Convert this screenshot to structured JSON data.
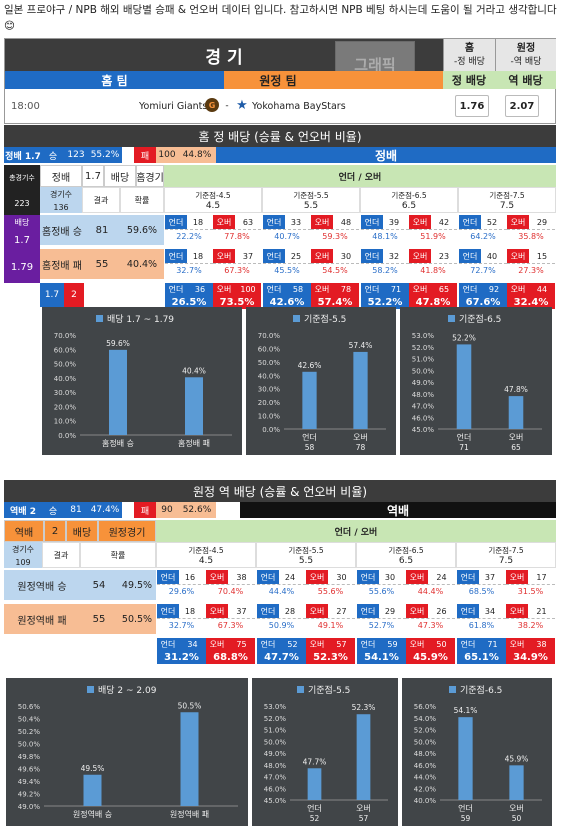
{
  "intro": "일본 프로야구 / NPB 해외 배당별 승패 & 언오버 데이터 입니다. 참고하시면 NPB 베팅 하시는데 도움이 될 거라고 생각합니다😊",
  "match": {
    "title": "경 기",
    "home_team_label": "홈 팀",
    "away_team_label": "원정 팀",
    "col_home": "홈",
    "col_home_sub": "-정 배당",
    "col_away": "원정",
    "col_away_sub": "-역 배당",
    "col_home_odds_label": "정 배당",
    "col_away_odds_label": "역 배당",
    "watermark": "그래픽",
    "time": "18:00",
    "home_team": "Yomiuri Giants",
    "vs": "-",
    "away_team": "Yokohama BayStars",
    "home_odds": "1.76",
    "away_odds": "2.07"
  },
  "colors": {
    "blue": "#1f6bc4",
    "orange": "#f7923a",
    "purple": "#6a1ea0",
    "green": "#c8e6b4",
    "red": "#e31b23",
    "peach": "#f7bd94",
    "lightblue": "#bcd6ee",
    "chart_bg": "#414548",
    "bar": "#5b9bd5",
    "dark": "#3c3c3c"
  },
  "sections": [
    {
      "title": "홈 정 배당 (승률 & 언오버 비율)",
      "summary": {
        "label": "정배 1.7",
        "win": "승",
        "wins": "123",
        "win_pct": "55.2%",
        "loss": "패",
        "losses": "100",
        "loss_pct": "44.8%",
        "tag": "정배"
      },
      "header": {
        "total_label": "총경기수",
        "total": "223",
        "odds_label": "정배",
        "odds_value": "1.7",
        "odds_word": "배당",
        "venue": "홈경기",
        "games_label": "경기수",
        "games": "136",
        "result_label": "결과",
        "pct_label": "확률",
        "ou_label": "언더 / 오버"
      },
      "side": {
        "label1": "배당",
        "value1": "1.7",
        "value2": "1.79"
      },
      "lines": [
        {
          "label": "기준점-4.5",
          "value": "4.5"
        },
        {
          "label": "기준점-5.5",
          "value": "5.5"
        },
        {
          "label": "기준점-6.5",
          "value": "6.5"
        },
        {
          "label": "기준점-7.5",
          "value": "7.5"
        }
      ],
      "rows": [
        {
          "name": "홈정배 승",
          "count": "81",
          "pct": "59.6%",
          "cells": [
            {
              "u": "18",
              "o": "63",
              "up": "22.2%",
              "op": "77.8%"
            },
            {
              "u": "33",
              "o": "48",
              "up": "40.7%",
              "op": "59.3%"
            },
            {
              "u": "39",
              "o": "42",
              "up": "48.1%",
              "op": "51.9%"
            },
            {
              "u": "52",
              "o": "29",
              "up": "64.2%",
              "op": "35.8%"
            }
          ]
        },
        {
          "name": "홈정배 패",
          "count": "55",
          "pct": "40.4%",
          "cells": [
            {
              "u": "18",
              "o": "37",
              "up": "32.7%",
              "op": "67.3%"
            },
            {
              "u": "25",
              "o": "30",
              "up": "45.5%",
              "op": "54.5%"
            },
            {
              "u": "32",
              "o": "23",
              "up": "58.2%",
              "op": "41.8%"
            },
            {
              "u": "40",
              "o": "15",
              "up": "72.7%",
              "op": "27.3%"
            }
          ]
        }
      ],
      "legend": {
        "a": "1.7",
        "b": "2"
      },
      "under_word": "언더",
      "over_word": "오버",
      "totals": [
        {
          "u": "36",
          "o": "100",
          "up": "26.5%",
          "op": "73.5%"
        },
        {
          "u": "58",
          "o": "78",
          "up": "42.6%",
          "op": "57.4%"
        },
        {
          "u": "71",
          "o": "65",
          "up": "52.2%",
          "op": "47.8%"
        },
        {
          "u": "92",
          "o": "44",
          "up": "67.6%",
          "op": "32.4%"
        }
      ]
    },
    {
      "title": "원정 역 배당 (승률 & 언오버 비율)",
      "summary": {
        "label": "역배 2",
        "win": "승",
        "wins": "81",
        "win_pct": "47.4%",
        "loss": "패",
        "losses": "90",
        "loss_pct": "52.6%",
        "tag": "역배"
      },
      "header": {
        "odds_label": "역배",
        "odds_value": "2",
        "odds_word": "배당",
        "venue": "원정경기",
        "games_label": "경기수",
        "games": "109",
        "result_label": "결과",
        "pct_label": "확률",
        "ou_label": "언더 / 오버"
      },
      "lines": [
        {
          "label": "기준점-4.5",
          "value": "4.5"
        },
        {
          "label": "기준점-5.5",
          "value": "5.5"
        },
        {
          "label": "기준점-6.5",
          "value": "6.5"
        },
        {
          "label": "기준점-7.5",
          "value": "7.5"
        }
      ],
      "rows": [
        {
          "name": "원정역배 승",
          "count": "54",
          "pct": "49.5%",
          "cells": [
            {
              "u": "16",
              "o": "38",
              "up": "29.6%",
              "op": "70.4%"
            },
            {
              "u": "24",
              "o": "30",
              "up": "44.4%",
              "op": "55.6%"
            },
            {
              "u": "30",
              "o": "24",
              "up": "55.6%",
              "op": "44.4%"
            },
            {
              "u": "37",
              "o": "17",
              "up": "68.5%",
              "op": "31.5%"
            }
          ]
        },
        {
          "name": "원정역배 패",
          "count": "55",
          "pct": "50.5%",
          "cells": [
            {
              "u": "18",
              "o": "37",
              "up": "32.7%",
              "op": "67.3%"
            },
            {
              "u": "28",
              "o": "27",
              "up": "50.9%",
              "op": "49.1%"
            },
            {
              "u": "29",
              "o": "26",
              "up": "52.7%",
              "op": "47.3%"
            },
            {
              "u": "34",
              "o": "21",
              "up": "61.8%",
              "op": "38.2%"
            }
          ]
        }
      ],
      "under_word": "언더",
      "over_word": "오버",
      "totals": [
        {
          "u": "34",
          "o": "75",
          "up": "31.2%",
          "op": "68.8%"
        },
        {
          "u": "52",
          "o": "57",
          "up": "47.7%",
          "op": "52.3%"
        },
        {
          "u": "59",
          "o": "50",
          "up": "54.1%",
          "op": "45.9%"
        },
        {
          "u": "71",
          "o": "38",
          "up": "65.1%",
          "op": "34.9%"
        }
      ]
    }
  ],
  "chart_data": [
    {
      "type": "bar",
      "title": "배당 1.7 ~ 1.79",
      "categories": [
        "홈정배 승",
        "홈정배 패"
      ],
      "values": [
        59.6,
        40.4
      ],
      "data_labels": [
        "59.6%",
        "40.4%"
      ],
      "ylim": [
        0,
        70
      ],
      "yticks": [
        "0.0%",
        "10.0%",
        "20.0%",
        "30.0%",
        "40.0%",
        "50.0%",
        "60.0%",
        "70.0%"
      ],
      "legend": "top",
      "grid": false
    },
    {
      "type": "bar",
      "title": "기준점-5.5",
      "categories": [
        "언더",
        "오버"
      ],
      "sub": [
        "58",
        "78"
      ],
      "values": [
        42.6,
        57.4
      ],
      "data_labels": [
        "42.6%",
        "57.4%"
      ],
      "ylim": [
        0,
        70
      ],
      "yticks": [
        "0.0%",
        "10.0%",
        "20.0%",
        "30.0%",
        "40.0%",
        "50.0%",
        "60.0%",
        "70.0%"
      ],
      "legend": "top",
      "grid": false
    },
    {
      "type": "bar",
      "title": "기준점-6.5",
      "categories": [
        "언더",
        "오버"
      ],
      "sub": [
        "71",
        "65"
      ],
      "values": [
        52.2,
        47.8
      ],
      "data_labels": [
        "52.2%",
        "47.8%"
      ],
      "ylim": [
        45,
        53
      ],
      "yticks": [
        "45.0%",
        "46.0%",
        "47.0%",
        "48.0%",
        "49.0%",
        "50.0%",
        "51.0%",
        "52.0%",
        "53.0%"
      ],
      "legend": "top",
      "grid": false
    },
    {
      "type": "bar",
      "title": "배당 2 ~ 2.09",
      "categories": [
        "원정역배 승",
        "원정역배 패"
      ],
      "values": [
        49.5,
        50.5
      ],
      "data_labels": [
        "49.5%",
        "50.5%"
      ],
      "ylim": [
        49,
        50.6
      ],
      "yticks": [
        "49.0%",
        "49.2%",
        "49.4%",
        "49.6%",
        "49.8%",
        "50.0%",
        "50.2%",
        "50.4%",
        "50.6%"
      ],
      "legend": "top",
      "grid": false
    },
    {
      "type": "bar",
      "title": "기준점-5.5",
      "categories": [
        "언더",
        "오버"
      ],
      "sub": [
        "52",
        "57"
      ],
      "values": [
        47.7,
        52.3
      ],
      "data_labels": [
        "47.7%",
        "52.3%"
      ],
      "ylim": [
        45,
        53
      ],
      "yticks": [
        "45.0%",
        "46.0%",
        "47.0%",
        "48.0%",
        "49.0%",
        "50.0%",
        "51.0%",
        "52.0%",
        "53.0%"
      ],
      "legend": "top",
      "grid": false
    },
    {
      "type": "bar",
      "title": "기준점-6.5",
      "categories": [
        "언더",
        "오버"
      ],
      "sub": [
        "59",
        "50"
      ],
      "values": [
        54.1,
        45.9
      ],
      "data_labels": [
        "54.1%",
        "45.9%"
      ],
      "ylim": [
        40,
        56
      ],
      "yticks": [
        "40.0%",
        "42.0%",
        "44.0%",
        "46.0%",
        "48.0%",
        "50.0%",
        "52.0%",
        "54.0%",
        "56.0%"
      ],
      "legend": "top",
      "grid": false
    }
  ]
}
